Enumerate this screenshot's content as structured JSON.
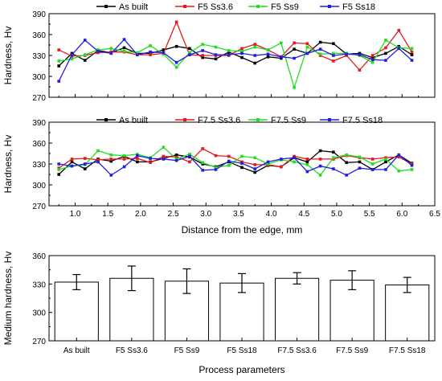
{
  "colors": {
    "as_built": "#000000",
    "ss36": "#e41a1c",
    "ss9": "#22dd22",
    "ss18": "#1f1fe0"
  },
  "chart_data": [
    {
      "type": "line",
      "ylabel": "Hardness, Hv",
      "ylim": [
        270,
        390
      ],
      "yticks": [
        270,
        300,
        330,
        360,
        390
      ],
      "xlim": [
        0.6,
        6.5
      ],
      "legend": "top",
      "x": [
        0.75,
        0.95,
        1.15,
        1.35,
        1.55,
        1.75,
        1.95,
        2.15,
        2.35,
        2.55,
        2.75,
        2.95,
        3.15,
        3.35,
        3.55,
        3.75,
        3.95,
        4.15,
        4.35,
        4.55,
        4.75,
        4.95,
        5.15,
        5.35,
        5.55,
        5.75,
        5.95,
        6.15
      ],
      "series": [
        {
          "name": "As built",
          "color_key": "as_built",
          "values": [
            315,
            333,
            323,
            337,
            334,
            341,
            333,
            333,
            338,
            343,
            340,
            327,
            325,
            335,
            327,
            319,
            328,
            326,
            339,
            333,
            349,
            347,
            332,
            333,
            327,
            333,
            343,
            331
          ]
        },
        {
          "name": "F5 Ss3.6",
          "color_key": "ss36",
          "values": [
            338,
            329,
            330,
            334,
            335,
            335,
            331,
            331,
            333,
            378,
            331,
            330,
            330,
            330,
            340,
            346,
            338,
            328,
            348,
            347,
            330,
            322,
            330,
            309,
            330,
            341,
            366,
            335
          ]
        },
        {
          "name": "F5 Ss9",
          "color_key": "ss9",
          "values": [
            322,
            325,
            331,
            338,
            340,
            336,
            334,
            344,
            332,
            313,
            334,
            346,
            342,
            337,
            336,
            342,
            338,
            348,
            284,
            342,
            332,
            333,
            333,
            330,
            320,
            352,
            341,
            340
          ]
        },
        {
          "name": "F5 Ss18",
          "color_key": "ss18",
          "values": [
            293,
            331,
            352,
            336,
            333,
            353,
            331,
            335,
            334,
            320,
            331,
            337,
            331,
            331,
            333,
            330,
            332,
            328,
            326,
            333,
            339,
            330,
            332,
            331,
            324,
            323,
            340,
            323
          ]
        }
      ]
    },
    {
      "type": "line",
      "ylabel": "Hardness, Hv",
      "xlabel": "Distance from the edge, mm",
      "ylim": [
        270,
        390
      ],
      "yticks": [
        270,
        300,
        330,
        360,
        390
      ],
      "xlim": [
        0.6,
        6.5
      ],
      "xticks": [
        "1.0",
        "1.5",
        "2.0",
        "2.5",
        "3.0",
        "3.5",
        "4.0",
        "4.5",
        "5.0",
        "5.5",
        "6.0",
        "6.5"
      ],
      "legend": "top",
      "x": [
        0.75,
        0.95,
        1.15,
        1.35,
        1.55,
        1.75,
        1.95,
        2.15,
        2.35,
        2.55,
        2.75,
        2.95,
        3.15,
        3.35,
        3.55,
        3.75,
        3.95,
        4.15,
        4.35,
        4.55,
        4.75,
        4.95,
        5.15,
        5.35,
        5.55,
        5.75,
        5.95,
        6.15
      ],
      "series": [
        {
          "name": "As built",
          "color_key": "as_built",
          "values": [
            315,
            333,
            323,
            337,
            334,
            341,
            333,
            333,
            338,
            343,
            340,
            330,
            326,
            333,
            325,
            318,
            328,
            326,
            339,
            333,
            349,
            347,
            332,
            333,
            322,
            333,
            343,
            331
          ]
        },
        {
          "name": "F7.5 Ss3.6",
          "color_key": "ss36",
          "values": [
            324,
            337,
            338,
            336,
            337,
            337,
            338,
            332,
            341,
            340,
            333,
            352,
            342,
            341,
            333,
            329,
            329,
            326,
            341,
            337,
            337,
            337,
            342,
            339,
            337,
            339,
            340,
            330
          ]
        },
        {
          "name": "F7.5 Ss9",
          "color_key": "ss9",
          "values": [
            322,
            327,
            329,
            349,
            343,
            342,
            344,
            339,
            354,
            337,
            344,
            332,
            325,
            328,
            341,
            339,
            330,
            336,
            333,
            329,
            314,
            339,
            343,
            340,
            330,
            337,
            320,
            322
          ]
        },
        {
          "name": "F7.5 Ss18",
          "color_key": "ss18",
          "values": [
            330,
            327,
            330,
            333,
            314,
            326,
            342,
            338,
            337,
            335,
            341,
            321,
            322,
            334,
            331,
            323,
            333,
            337,
            339,
            319,
            327,
            323,
            314,
            324,
            322,
            322,
            343,
            328
          ]
        }
      ]
    },
    {
      "type": "bar",
      "ylabel": "Medium hardness, Hv",
      "xlabel": "Process parameters",
      "ylim": [
        270,
        360
      ],
      "yticks": [
        270,
        300,
        330,
        360
      ],
      "categories": [
        "As built",
        "F5 Ss3.6",
        "F5 Ss9",
        "F5 Ss18",
        "F7.5 Ss3.6",
        "F7.5 Ss9",
        "F7.5 Ss18"
      ],
      "values": [
        332,
        336,
        333,
        331,
        336,
        334,
        329
      ],
      "errors": [
        8,
        13,
        13,
        10,
        6,
        10,
        8
      ]
    }
  ]
}
